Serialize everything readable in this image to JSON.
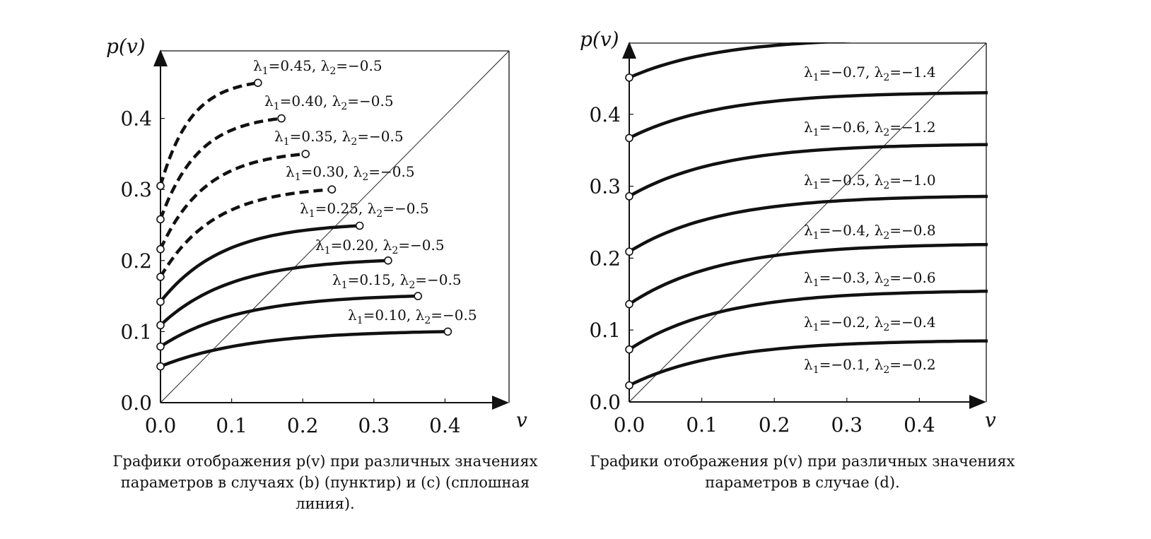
{
  "chart_data": [
    {
      "type": "line",
      "title": "",
      "xlabel": "v",
      "ylabel": "p(v)",
      "xlim": [
        0,
        0.5
      ],
      "ylim": [
        0,
        0.5
      ],
      "x_ticks": [
        "0.0",
        "0.1",
        "0.2",
        "0.3",
        "0.4"
      ],
      "y_ticks": [
        "0.0",
        "0.1",
        "0.2",
        "0.3",
        "0.4"
      ],
      "diagonal": "p = v",
      "caption": "Графики отображения p(v) при различных значениях параметров в случаях (b) (пунктир) и (c) (сплошная линия).",
      "series": [
        {
          "name": "λ1=0.45, λ2=−0.5",
          "lambda1": "λ1=0.45",
          "lambda2": "λ2=−0.5",
          "style": "dashed",
          "start": [
            0,
            0.305
          ],
          "end": [
            0.137,
            0.45
          ]
        },
        {
          "name": "λ1=0.40, λ2=−0.5",
          "lambda1": "λ1=0.40",
          "lambda2": "λ2=−0.5",
          "style": "dashed",
          "start": [
            0,
            0.258
          ],
          "end": [
            0.17,
            0.4
          ]
        },
        {
          "name": "λ1=0.35, λ2=−0.5",
          "lambda1": "λ1=0.35",
          "lambda2": "λ2=−0.5",
          "style": "dashed",
          "start": [
            0,
            0.216
          ],
          "end": [
            0.204,
            0.35
          ]
        },
        {
          "name": "λ1=0.30, λ2=−0.5",
          "lambda1": "λ1=0.30",
          "lambda2": "λ2=−0.5",
          "style": "dashed",
          "start": [
            0,
            0.177
          ],
          "end": [
            0.241,
            0.3
          ]
        },
        {
          "name": "λ1=0.25, λ2=−0.5",
          "lambda1": "λ1=0.25",
          "lambda2": "λ2=−0.5",
          "style": "solid",
          "start": [
            0,
            0.142
          ],
          "end": [
            0.28,
            0.249
          ]
        },
        {
          "name": "λ1=0.20, λ2=−0.5",
          "lambda1": "λ1=0.20",
          "lambda2": "λ2=−0.5",
          "style": "solid",
          "start": [
            0,
            0.109
          ],
          "end": [
            0.32,
            0.2
          ]
        },
        {
          "name": "λ1=0.15, λ2=−0.5",
          "lambda1": "λ1=0.15",
          "lambda2": "λ2=−0.5",
          "style": "solid",
          "start": [
            0,
            0.079
          ],
          "end": [
            0.362,
            0.15
          ]
        },
        {
          "name": "λ1=0.10, λ2=−0.5",
          "lambda1": "λ1=0.10",
          "lambda2": "λ2=−0.5",
          "style": "solid",
          "start": [
            0,
            0.051
          ],
          "end": [
            0.404,
            0.1
          ]
        }
      ]
    },
    {
      "type": "line",
      "title": "",
      "xlabel": "v",
      "ylabel": "p(v)",
      "xlim": [
        0,
        0.5
      ],
      "ylim": [
        0,
        0.5
      ],
      "x_ticks": [
        "0.0",
        "0.1",
        "0.2",
        "0.3",
        "0.4"
      ],
      "y_ticks": [
        "0.0",
        "0.1",
        "0.2",
        "0.3",
        "0.4"
      ],
      "diagonal": "p = v",
      "caption": "Графики отображения p(v) при различных значениях параметров в случае (d).",
      "series": [
        {
          "name": "λ1=−0.7, λ2=−1.4",
          "lambda1": "λ1=−0.7",
          "lambda2": "λ2=−1.4",
          "style": "solid",
          "start": [
            0,
            0.451
          ],
          "end": [
            0.5,
            0.506
          ]
        },
        {
          "name": "λ1=−0.6, λ2=−1.2",
          "lambda1": "λ1=−0.6",
          "lambda2": "λ2=−1.2",
          "style": "solid",
          "start": [
            0,
            0.367
          ],
          "end": [
            0.5,
            0.43
          ]
        },
        {
          "name": "λ1=−0.5, λ2=−1.0",
          "lambda1": "λ1=−0.5",
          "lambda2": "λ2=−1.0",
          "style": "solid",
          "start": [
            0,
            0.286
          ],
          "end": [
            0.5,
            0.358
          ]
        },
        {
          "name": "λ1=−0.4, λ2=−0.8",
          "lambda1": "λ1=−0.4",
          "lambda2": "λ2=−0.8",
          "style": "solid",
          "start": [
            0,
            0.209
          ],
          "end": [
            0.5,
            0.286
          ]
        },
        {
          "name": "λ1=−0.3, λ2=−0.6",
          "lambda1": "λ1=−0.3",
          "lambda2": "λ2=−0.6",
          "style": "solid",
          "start": [
            0,
            0.136
          ],
          "end": [
            0.5,
            0.219
          ]
        },
        {
          "name": "λ1=−0.2, λ2=−0.4",
          "lambda1": "λ1=−0.2",
          "lambda2": "λ2=−0.4",
          "style": "solid",
          "start": [
            0,
            0.073
          ],
          "end": [
            0.5,
            0.154
          ]
        },
        {
          "name": "λ1=−0.1, λ2=−0.2",
          "lambda1": "λ1=−0.1",
          "lambda2": "λ2=−0.2",
          "style": "solid",
          "start": [
            0,
            0.023
          ],
          "end": [
            0.5,
            0.085
          ]
        }
      ]
    }
  ]
}
